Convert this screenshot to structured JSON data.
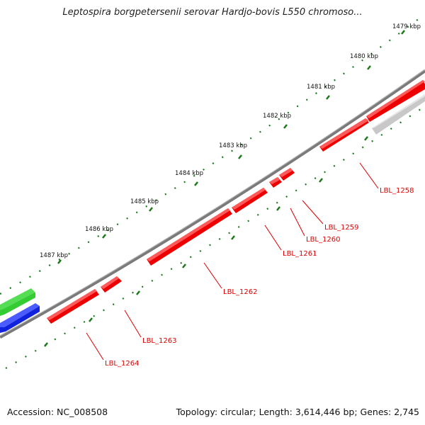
{
  "title": "Leptospira borgpetersenii serovar Hardjo-bovis L550 chromoso...",
  "footer": {
    "accession": "Accession: NC_008508",
    "summary": "Topology: circular; Length: 3,614,446 bp; Genes: 2,745"
  },
  "colors": {
    "backbone": "#7a7a7a",
    "forward_gene": "#ee0000",
    "reverse_gene_gray": "#c8c8c8",
    "green_feature": "#33cc33",
    "blue_feature": "#1122dd",
    "tick": "#1a7a1a",
    "label": "#dd0000"
  },
  "ticks": [
    {
      "label": "1479 kbp"
    },
    {
      "label": "1480 kbp"
    },
    {
      "label": "1481 kbp"
    },
    {
      "label": "1482 kbp"
    },
    {
      "label": "1483 kbp"
    },
    {
      "label": "1484 kbp"
    },
    {
      "label": "1485 kbp"
    },
    {
      "label": "1486 kbp"
    },
    {
      "label": "1487 kbp"
    }
  ],
  "genes": [
    {
      "name": "LBL_1258"
    },
    {
      "name": "LBL_1259"
    },
    {
      "name": "LBL_1260"
    },
    {
      "name": "LBL_1261"
    },
    {
      "name": "LBL_1262"
    },
    {
      "name": "LBL_1263"
    },
    {
      "name": "LBL_1264"
    }
  ]
}
